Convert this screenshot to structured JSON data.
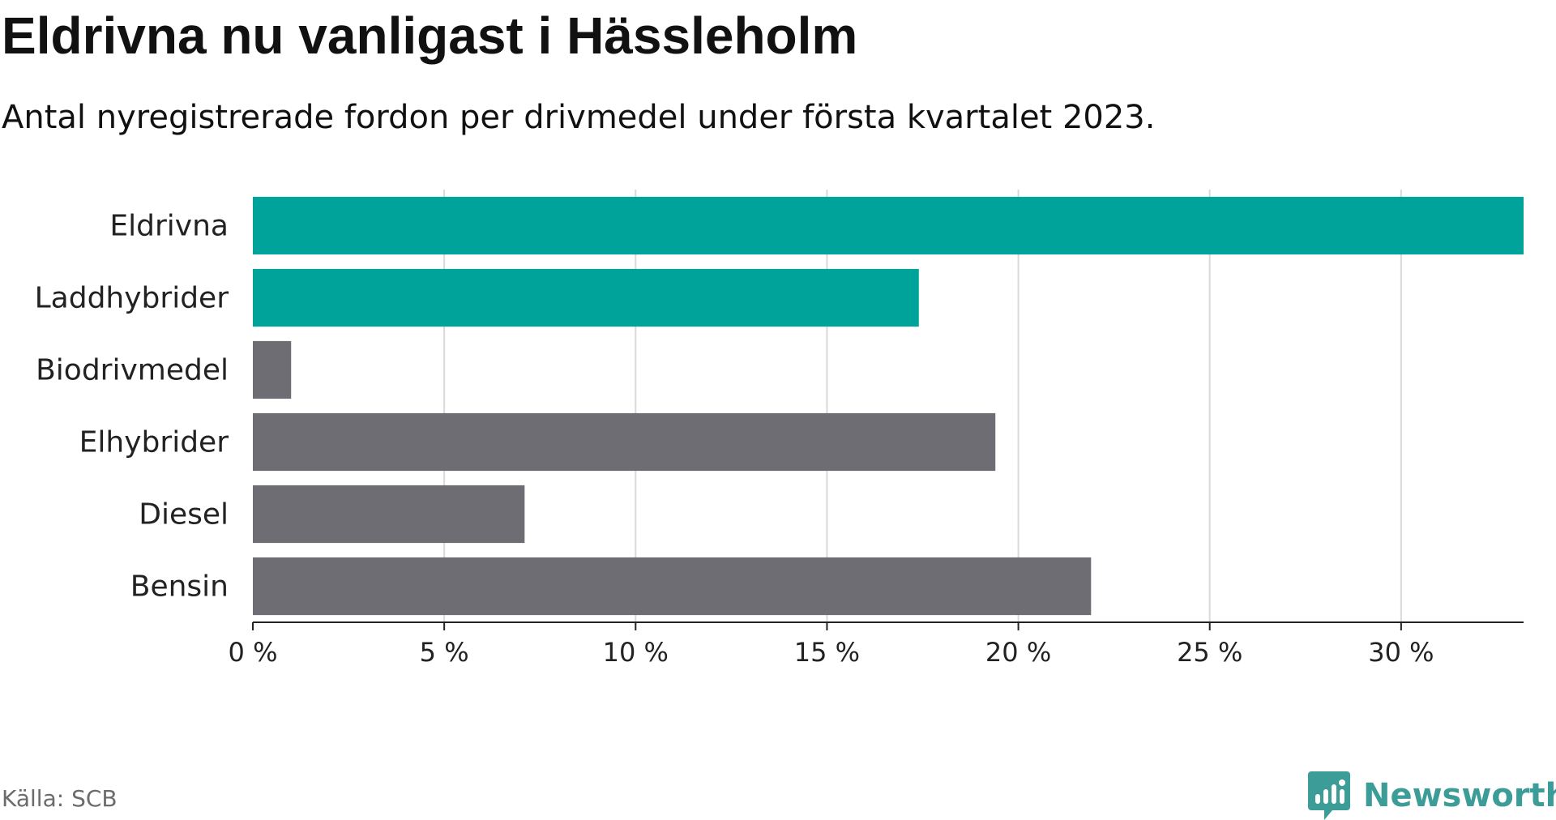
{
  "title": "Eldrivna nu vanligast i Hässleholm",
  "subtitle": "Antal nyregistrerade fordon per drivmedel under första kvartalet 2023.",
  "source": "Källa: SCB",
  "brand": {
    "name": "Newsworthy",
    "icon": "bar-chart-bubble-icon",
    "color": "#3c9c98"
  },
  "chart_data": {
    "type": "bar",
    "orientation": "horizontal",
    "categories": [
      "Eldrivna",
      "Laddhybrider",
      "Biodrivmedel",
      "Elhybrider",
      "Diesel",
      "Bensin"
    ],
    "values": [
      33.2,
      17.4,
      1.0,
      19.4,
      7.1,
      21.9
    ],
    "colors": [
      "#00a39a",
      "#00a39a",
      "#6e6d73",
      "#6e6d73",
      "#6e6d73",
      "#6e6d73"
    ],
    "xlim": [
      0,
      33.2
    ],
    "x_ticks": [
      0,
      5,
      10,
      15,
      20,
      25,
      30
    ],
    "x_tick_labels": [
      "0 %",
      "5 %",
      "10 %",
      "15 %",
      "20 %",
      "25 %",
      "30 %"
    ],
    "grid": "vertical",
    "xlabel": "",
    "ylabel": ""
  }
}
